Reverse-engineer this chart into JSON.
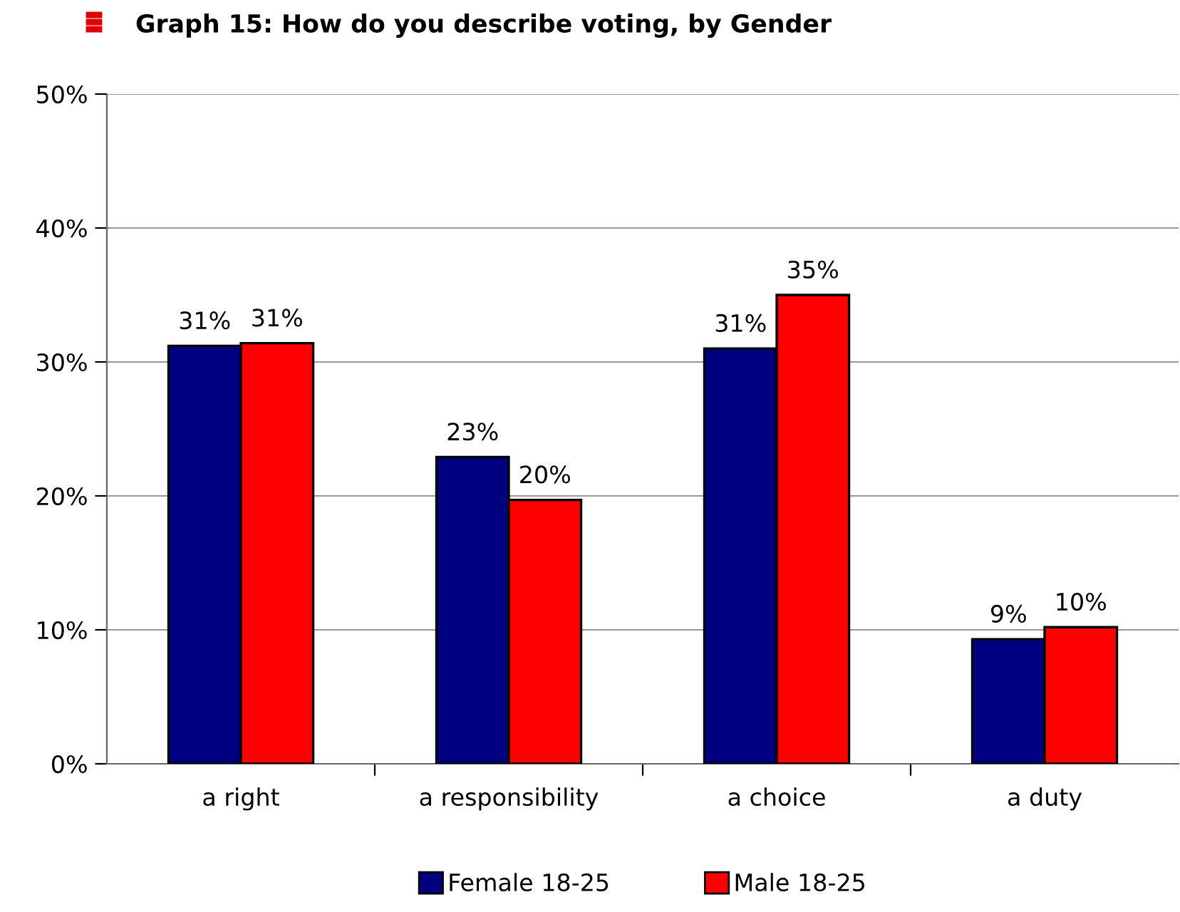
{
  "chart_data": {
    "type": "bar",
    "title": "Graph 15: How do you describe voting, by Gender",
    "categories": [
      "a right",
      "a responsibility",
      "a choice",
      "a duty"
    ],
    "series": [
      {
        "name": "Female 18-25",
        "color": "#000080",
        "values": [
          31.2,
          22.9,
          31.0,
          9.3
        ],
        "value_labels": [
          "31%",
          "23%",
          "31%",
          "9%"
        ]
      },
      {
        "name": "Male 18-25",
        "color": "#ff0000",
        "values": [
          31.4,
          19.7,
          35.0,
          10.2
        ],
        "value_labels": [
          "31%",
          "20%",
          "35%",
          "10%"
        ]
      }
    ],
    "ylim": [
      0,
      50
    ],
    "yticks": [
      {
        "value": 0,
        "label": "0%"
      },
      {
        "value": 10,
        "label": "10%"
      },
      {
        "value": 20,
        "label": "20%"
      },
      {
        "value": 30,
        "label": "30%"
      },
      {
        "value": 40,
        "label": "40%"
      },
      {
        "value": 50,
        "label": "50%"
      }
    ],
    "grid": "y",
    "legend": "bottom"
  }
}
